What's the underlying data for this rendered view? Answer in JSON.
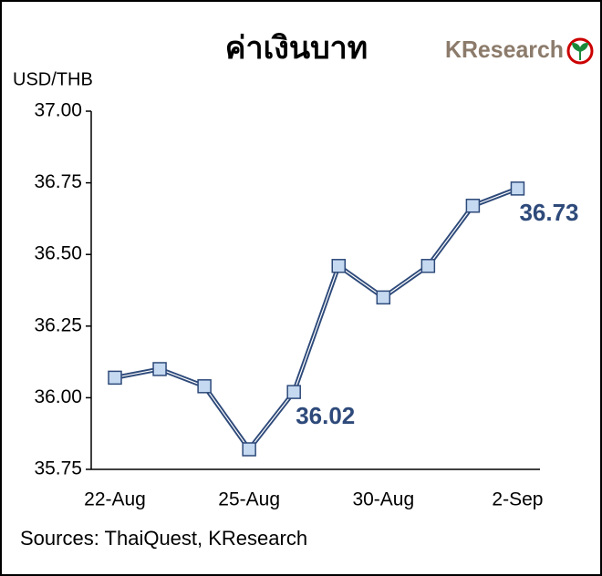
{
  "chart_data": {
    "type": "line",
    "title": "ค่าเงินบาท",
    "logo": "KResearch",
    "y_label": "USD/THB",
    "source": "Sources: ThaiQuest, KResearch",
    "categories": [
      "22-Aug",
      null,
      null,
      "25-Aug",
      null,
      null,
      "30-Aug",
      null,
      null,
      "2-Sep"
    ],
    "series": [
      {
        "color": "#2e4a7a",
        "marker_color": "#c5d9f1",
        "values": [
          36.07,
          36.1,
          36.04,
          35.82,
          36.02,
          36.46,
          36.35,
          36.46,
          36.67,
          36.73
        ],
        "value_labels": [
          null,
          null,
          null,
          null,
          "36.02",
          null,
          null,
          null,
          null,
          "36.73"
        ]
      }
    ],
    "ylim": [
      35.75,
      37.0
    ],
    "yticks": [
      {
        "value": 35.75,
        "label": "35.75"
      },
      {
        "value": 36.0,
        "label": "36.00"
      },
      36.25,
      {
        "value": 36.5,
        "label": "36.50"
      },
      36.75,
      {
        "value": 37.0,
        "label": "37.00"
      }
    ]
  }
}
